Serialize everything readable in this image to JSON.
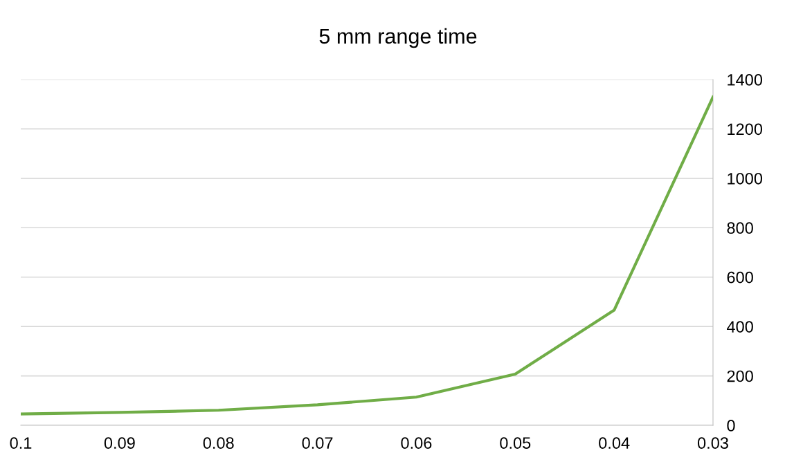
{
  "chart_data": {
    "type": "line",
    "title": "5 mm range time",
    "x": [
      0.1,
      0.09,
      0.08,
      0.07,
      0.06,
      0.05,
      0.04,
      0.03
    ],
    "series": [
      {
        "color": "#70ad47",
        "values": [
          46,
          52,
          61,
          83,
          114,
          207,
          466,
          1329
        ]
      }
    ],
    "xlim": [
      0.1,
      0.03
    ],
    "xticks": [
      {
        "value": 0.1,
        "label": "0.1"
      },
      {
        "value": 0.09,
        "label": "0.09"
      },
      {
        "value": 0.08,
        "label": "0.08"
      },
      {
        "value": 0.07,
        "label": "0.07"
      },
      {
        "value": 0.06,
        "label": "0.06"
      },
      {
        "value": 0.05,
        "label": "0.05"
      },
      {
        "value": 0.04,
        "label": "0.04"
      },
      {
        "value": 0.03,
        "label": "0.03"
      }
    ],
    "ylim": [
      0,
      1400
    ],
    "yticks": [
      0,
      200,
      400,
      600,
      800,
      1000,
      1200,
      1400
    ],
    "grid": "y",
    "legend": false,
    "marker": "none",
    "line_style": "solid"
  }
}
